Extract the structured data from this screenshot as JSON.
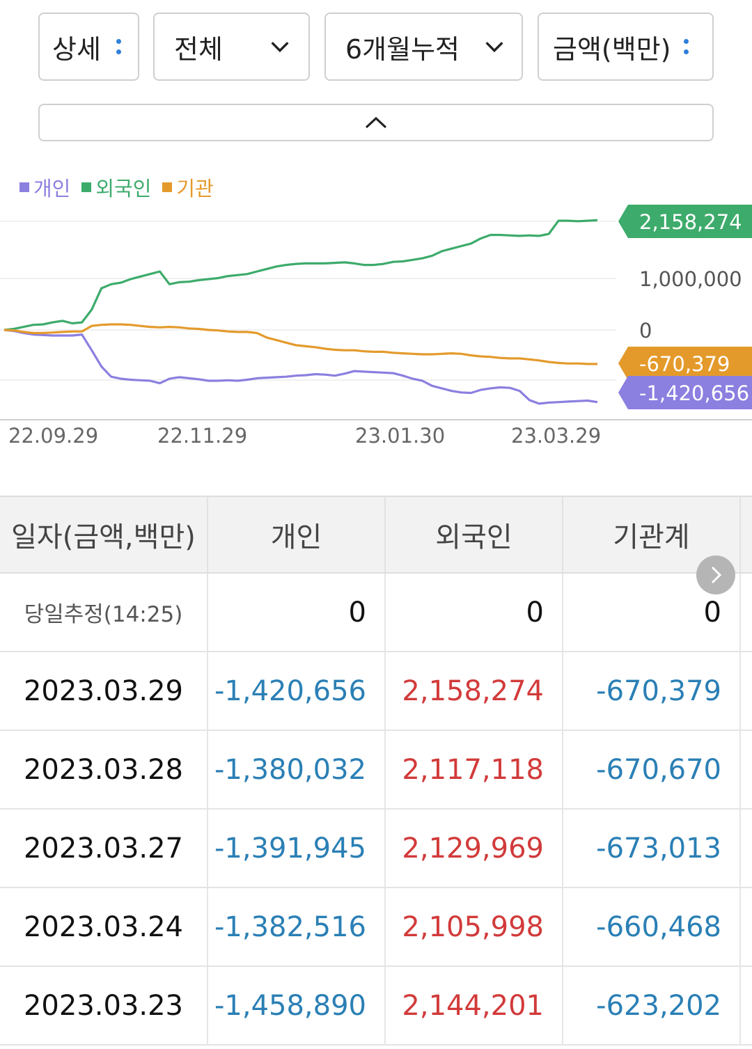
{
  "controls": {
    "detail": "상세",
    "scope": "전체",
    "period": "6개월누적",
    "unit": "금액(백만)"
  },
  "legend": [
    {
      "label": "개인",
      "color": "#8b7fe0"
    },
    {
      "label": "외국인",
      "color": "#3dab6b"
    },
    {
      "label": "기관",
      "color": "#e49a2b"
    }
  ],
  "chart_data": {
    "type": "line",
    "y_ticks": [
      "1,000,000",
      "0"
    ],
    "x_ticks": [
      "22.09.29",
      "22.11.29",
      "23.01.30",
      "23.03.29"
    ],
    "series": [
      {
        "name": "외국인",
        "color": "#3dab6b",
        "last_label": "2,158,274",
        "values": [
          0,
          20000,
          60000,
          100000,
          110000,
          150000,
          180000,
          130000,
          150000,
          400000,
          820000,
          900000,
          930000,
          1000000,
          1050000,
          1100000,
          1150000,
          900000,
          940000,
          950000,
          980000,
          1000000,
          1020000,
          1060000,
          1080000,
          1100000,
          1150000,
          1200000,
          1250000,
          1280000,
          1300000,
          1310000,
          1310000,
          1310000,
          1320000,
          1330000,
          1310000,
          1280000,
          1280000,
          1300000,
          1340000,
          1350000,
          1380000,
          1410000,
          1460000,
          1550000,
          1600000,
          1650000,
          1700000,
          1800000,
          1870000,
          1870000,
          1860000,
          1850000,
          1860000,
          1850000,
          1890000,
          2150000,
          2150000,
          2140000,
          2150000,
          2158274
        ]
      },
      {
        "name": "개인",
        "color": "#8b7fe0",
        "last_label": "-1,420,656",
        "values": [
          0,
          -20000,
          -60000,
          -90000,
          -100000,
          -110000,
          -110000,
          -110000,
          -90000,
          -400000,
          -720000,
          -920000,
          -960000,
          -980000,
          -990000,
          -1000000,
          -1050000,
          -960000,
          -930000,
          -950000,
          -970000,
          -1000000,
          -1000000,
          -990000,
          -1000000,
          -980000,
          -950000,
          -940000,
          -930000,
          -920000,
          -900000,
          -890000,
          -870000,
          -880000,
          -900000,
          -860000,
          -810000,
          -820000,
          -830000,
          -840000,
          -850000,
          -900000,
          -960000,
          -1000000,
          -1100000,
          -1150000,
          -1200000,
          -1230000,
          -1240000,
          -1180000,
          -1150000,
          -1130000,
          -1140000,
          -1200000,
          -1380000,
          -1450000,
          -1430000,
          -1420000,
          -1410000,
          -1400000,
          -1390000,
          -1420656
        ]
      },
      {
        "name": "기관",
        "color": "#e49a2b",
        "last_label": "-670,379",
        "values": [
          0,
          -10000,
          -40000,
          -60000,
          -60000,
          -50000,
          -40000,
          -30000,
          -30000,
          80000,
          100000,
          110000,
          110000,
          100000,
          80000,
          60000,
          50000,
          60000,
          50000,
          30000,
          20000,
          0,
          -10000,
          -30000,
          -40000,
          -40000,
          -60000,
          -150000,
          -200000,
          -250000,
          -300000,
          -320000,
          -340000,
          -370000,
          -390000,
          -400000,
          -400000,
          -420000,
          -430000,
          -430000,
          -450000,
          -460000,
          -470000,
          -480000,
          -480000,
          -470000,
          -460000,
          -470000,
          -500000,
          -520000,
          -530000,
          -550000,
          -560000,
          -560000,
          -580000,
          -600000,
          -630000,
          -650000,
          -660000,
          -660000,
          -670000,
          -670379
        ]
      }
    ]
  },
  "table": {
    "headers": [
      "일자(금액,백만)",
      "개인",
      "외국인",
      "기관계"
    ],
    "rows": [
      {
        "date": "당일추정(14:25)",
        "individual": "0",
        "foreign": "0",
        "institution": "0"
      },
      {
        "date": "2023.03.29",
        "individual": "-1,420,656",
        "foreign": "2,158,274",
        "institution": "-670,379"
      },
      {
        "date": "2023.03.28",
        "individual": "-1,380,032",
        "foreign": "2,117,118",
        "institution": "-670,670"
      },
      {
        "date": "2023.03.27",
        "individual": "-1,391,945",
        "foreign": "2,129,969",
        "institution": "-673,013"
      },
      {
        "date": "2023.03.24",
        "individual": "-1,382,516",
        "foreign": "2,105,998",
        "institution": "-660,468"
      },
      {
        "date": "2023.03.23",
        "individual": "-1,458,890",
        "foreign": "2,144,201",
        "institution": "-623,202"
      }
    ],
    "colors": {
      "negative": "#2a7fb5",
      "positive": "#d23a3a",
      "zero": "#111111"
    }
  }
}
